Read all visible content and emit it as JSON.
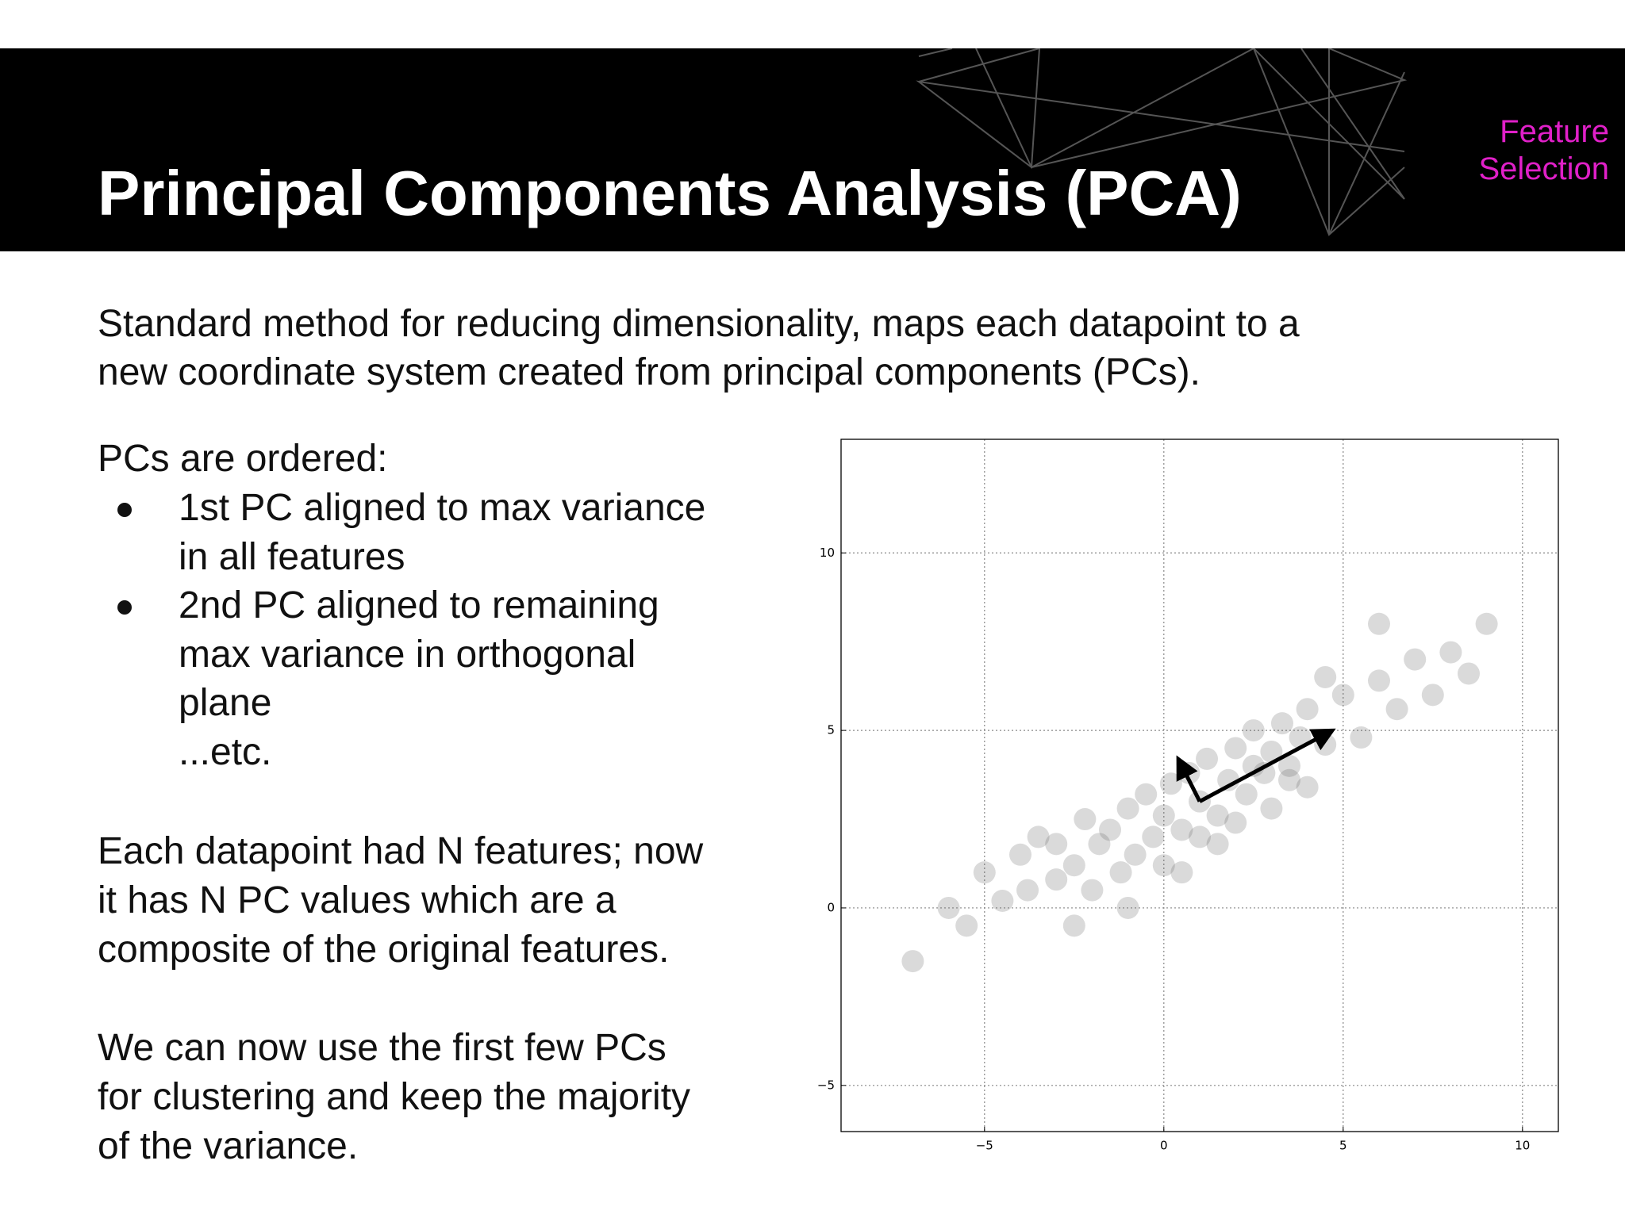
{
  "header": {
    "title": "Principal Components Analysis (PCA)",
    "tag": [
      "Feature",
      "Selection"
    ]
  },
  "intro": [
    "Standard method for reducing dimensionality, maps each datapoint to a",
    "new coordinate system created from principal components (PCs)."
  ],
  "ordered": {
    "heading": "PCs are ordered:",
    "bullets": [
      [
        "1st PC aligned to max variance",
        "in all features"
      ],
      [
        "2nd PC aligned to remaining",
        "max variance in orthogonal",
        "plane",
        "...etc."
      ]
    ]
  },
  "para1": [
    "Each datapoint had N features; now",
    "it has N PC values which are a",
    "composite of the original features."
  ],
  "para2": [
    "We can now use the first few PCs",
    "for clustering and keep the majority",
    "of the variance."
  ],
  "chart_data": {
    "type": "scatter",
    "series": [
      {
        "color": "#555555",
        "x": [
          -7,
          -6,
          -5.5,
          -5,
          -4.5,
          -4,
          -3.8,
          -3.5,
          -3,
          -3,
          -2.5,
          -2.2,
          -2,
          -1.8,
          -1.5,
          -1.2,
          -1,
          -0.8,
          -0.5,
          -0.3,
          0,
          0,
          0.2,
          0.5,
          0.7,
          1,
          1,
          1.2,
          1.5,
          1.8,
          2,
          2,
          2.3,
          2.5,
          2.8,
          3,
          3,
          3.3,
          3.5,
          3.8,
          4,
          4,
          4.5,
          5,
          5.5,
          6,
          6.5,
          7,
          7.5,
          8,
          8.5,
          9,
          -1,
          0.5,
          2.5,
          3.5,
          1.5,
          -2.5,
          4.5,
          6
        ],
        "values": [
          -1.5,
          0,
          -0.5,
          1,
          0.2,
          1.5,
          0.5,
          2,
          0.8,
          1.8,
          1.2,
          2.5,
          0.5,
          1.8,
          2.2,
          1,
          2.8,
          1.5,
          3.2,
          2,
          1.2,
          2.6,
          3.5,
          2.2,
          3.8,
          2,
          3,
          4.2,
          2.6,
          3.6,
          2.4,
          4.5,
          3.2,
          5,
          3.8,
          2.8,
          4.4,
          5.2,
          3.6,
          4.8,
          3.4,
          5.6,
          4.6,
          6,
          4.8,
          6.4,
          5.6,
          7,
          6,
          7.2,
          6.6,
          8,
          0,
          1,
          4,
          4,
          1.8,
          -0.5,
          6.5,
          8
        ]
      }
    ],
    "arrows": [
      {
        "x": [
          1,
          4.7
        ],
        "y": [
          3,
          5
        ]
      },
      {
        "x": [
          1,
          0.4
        ],
        "y": [
          3,
          4.2
        ]
      }
    ],
    "arrow_color": "#000000",
    "xlim": [
      -9,
      11
    ],
    "ylim": [
      -6.3,
      13.2
    ],
    "xticks": [
      {
        "value": -5,
        "label": "−5"
      },
      0,
      5,
      10
    ],
    "yticks": [
      {
        "value": -5,
        "label": "−5"
      },
      0,
      5,
      10
    ],
    "grid": true
  }
}
